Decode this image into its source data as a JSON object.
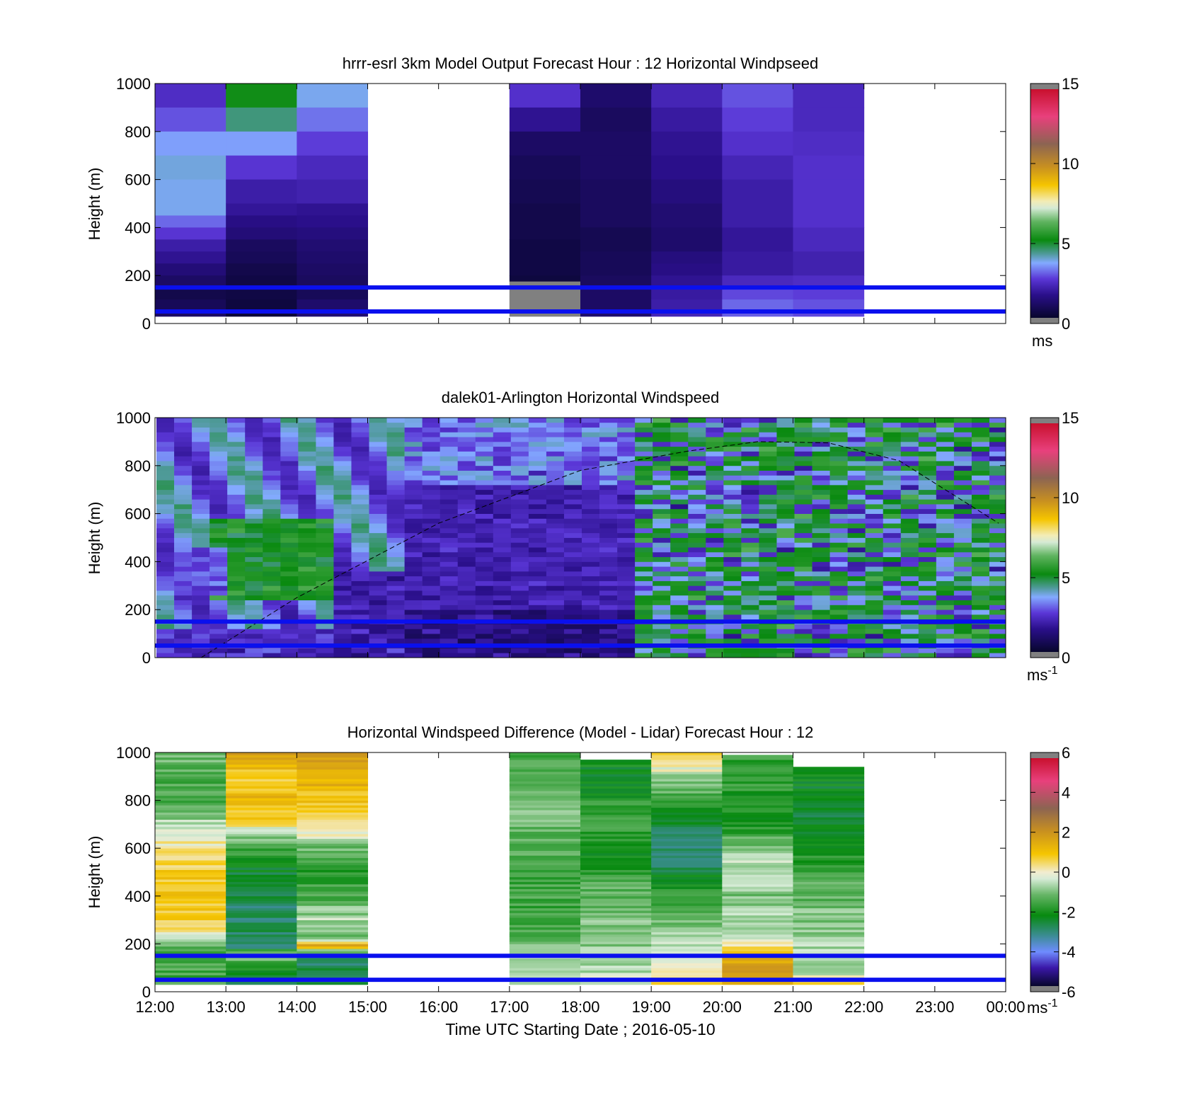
{
  "chart_data": [
    {
      "type": "heatmap",
      "title": "hrrr-esrl 3km Model Output   Forecast Hour : 12 Horizontal Windpseed",
      "ylabel": "Height (m)",
      "xlabel": "",
      "colorbar_label": "ms",
      "colorbar_label_exp": "",
      "colorbar_range": [
        0,
        15
      ],
      "colorbar_ticks": [
        "0",
        "5",
        "10",
        "15"
      ],
      "ylim": [
        0,
        1000
      ],
      "y_ticks": [
        "0",
        "200",
        "400",
        "600",
        "800",
        "1000"
      ],
      "x_ticks": [
        "12:00",
        "13:00",
        "14:00",
        "15:00",
        "16:00",
        "17:00",
        "18:00",
        "19:00",
        "20:00",
        "21:00",
        "22:00",
        "23:00",
        "00:00"
      ],
      "reference_lines_m": [
        50,
        150
      ],
      "columns": [
        {
          "hour": 0,
          "cells": [
            [
              900,
              1000,
              2.3
            ],
            [
              800,
              900,
              2.8
            ],
            [
              700,
              800,
              3.5
            ],
            [
              600,
              700,
              3.8
            ],
            [
              450,
              600,
              3.7
            ],
            [
              400,
              450,
              3.0
            ],
            [
              350,
              400,
              2.5
            ],
            [
              300,
              350,
              1.9
            ],
            [
              250,
              300,
              1.6
            ],
            [
              200,
              250,
              1.2
            ],
            [
              150,
              200,
              0.9
            ],
            [
              100,
              150,
              0.5
            ],
            [
              50,
              100,
              0.7
            ],
            [
              30,
              50,
              0.9
            ]
          ]
        },
        {
          "hour": 1,
          "cells": [
            [
              900,
              1000,
              5.2
            ],
            [
              800,
              900,
              4.4
            ],
            [
              700,
              800,
              3.5
            ],
            [
              600,
              700,
              2.5
            ],
            [
              500,
              600,
              1.9
            ],
            [
              450,
              500,
              1.7
            ],
            [
              400,
              450,
              1.4
            ],
            [
              350,
              400,
              1.2
            ],
            [
              300,
              350,
              0.8
            ],
            [
              250,
              300,
              0.7
            ],
            [
              200,
              250,
              0.5
            ],
            [
              150,
              200,
              0.4
            ],
            [
              100,
              150,
              0.4
            ],
            [
              50,
              100,
              0.3
            ],
            [
              30,
              50,
              0.2
            ]
          ]
        },
        {
          "hour": 2,
          "cells": [
            [
              900,
              1000,
              3.7
            ],
            [
              800,
              900,
              3.1
            ],
            [
              700,
              800,
              2.6
            ],
            [
              600,
              700,
              2.2
            ],
            [
              500,
              600,
              2.0
            ],
            [
              450,
              500,
              1.6
            ],
            [
              400,
              450,
              1.5
            ],
            [
              350,
              400,
              1.3
            ],
            [
              300,
              350,
              1.1
            ],
            [
              250,
              300,
              1.0
            ],
            [
              200,
              250,
              0.9
            ],
            [
              150,
              200,
              0.8
            ],
            [
              100,
              150,
              0.7
            ],
            [
              50,
              100,
              1.0
            ],
            [
              30,
              50,
              1.1
            ]
          ]
        },
        {
          "hour": 5,
          "cells": [
            [
              900,
              1000,
              2.4
            ],
            [
              800,
              900,
              1.6
            ],
            [
              700,
              800,
              0.9
            ],
            [
              600,
              700,
              0.7
            ],
            [
              500,
              600,
              0.6
            ],
            [
              350,
              500,
              0.5
            ],
            [
              200,
              350,
              0.4
            ],
            [
              175,
              200,
              0.3
            ],
            [
              150,
              175,
              -1
            ],
            [
              50,
              150,
              -1
            ],
            [
              30,
              50,
              -1
            ]
          ]
        },
        {
          "hour": 6,
          "cells": [
            [
              900,
              1000,
              1.0
            ],
            [
              800,
              900,
              0.8
            ],
            [
              700,
              800,
              0.9
            ],
            [
              600,
              700,
              0.9
            ],
            [
              500,
              600,
              0.8
            ],
            [
              400,
              500,
              0.8
            ],
            [
              300,
              400,
              0.6
            ],
            [
              200,
              300,
              0.7
            ],
            [
              150,
              200,
              0.8
            ],
            [
              50,
              150,
              0.9
            ],
            [
              30,
              50,
              1.0
            ]
          ]
        },
        {
          "hour": 7,
          "cells": [
            [
              900,
              1000,
              2.1
            ],
            [
              800,
              900,
              1.8
            ],
            [
              700,
              800,
              1.6
            ],
            [
              600,
              700,
              1.5
            ],
            [
              500,
              600,
              1.3
            ],
            [
              400,
              500,
              1.1
            ],
            [
              300,
              400,
              1.0
            ],
            [
              250,
              300,
              1.3
            ],
            [
              200,
              250,
              1.4
            ],
            [
              150,
              200,
              1.6
            ],
            [
              100,
              150,
              1.8
            ],
            [
              50,
              100,
              1.9
            ],
            [
              30,
              50,
              2.1
            ]
          ]
        },
        {
          "hour": 8,
          "cells": [
            [
              900,
              1000,
              2.8
            ],
            [
              800,
              900,
              2.6
            ],
            [
              700,
              800,
              2.4
            ],
            [
              600,
              700,
              2.1
            ],
            [
              400,
              600,
              1.9
            ],
            [
              300,
              400,
              1.7
            ],
            [
              200,
              300,
              1.8
            ],
            [
              150,
              200,
              2.2
            ],
            [
              100,
              150,
              2.7
            ],
            [
              50,
              100,
              3.0
            ],
            [
              30,
              50,
              2.9
            ]
          ]
        },
        {
          "hour": 9,
          "cells": [
            [
              900,
              1000,
              2.2
            ],
            [
              800,
              900,
              2.2
            ],
            [
              700,
              800,
              2.3
            ],
            [
              600,
              700,
              2.4
            ],
            [
              400,
              600,
              2.4
            ],
            [
              300,
              400,
              2.2
            ],
            [
              200,
              300,
              2.0
            ],
            [
              150,
              200,
              2.3
            ],
            [
              100,
              150,
              2.6
            ],
            [
              50,
              100,
              2.8
            ],
            [
              30,
              50,
              2.7
            ]
          ]
        }
      ]
    },
    {
      "type": "heatmap",
      "title": "dalek01-Arlington  Horizontal Windspeed",
      "ylabel": "Height (m)",
      "xlabel": "",
      "colorbar_label": "ms",
      "colorbar_label_exp": "-1",
      "colorbar_range": [
        0,
        15
      ],
      "colorbar_ticks": [
        "0",
        "5",
        "10",
        "15"
      ],
      "ylim": [
        0,
        1000
      ],
      "y_ticks": [
        "0",
        "200",
        "400",
        "600",
        "800",
        "1000"
      ],
      "x_ticks": [
        "12:00",
        "13:00",
        "14:00",
        "15:00",
        "16:00",
        "17:00",
        "18:00",
        "19:00",
        "20:00",
        "21:00",
        "22:00",
        "23:00",
        "00:00"
      ],
      "reference_lines_m": [
        50,
        150
      ],
      "time_step_hours": 0.25,
      "height_step_m": 20,
      "field": "dense lidar retrieval; slow jet regions near 14:30-16:30 UTC (1-2 m/s), faster mixed 3-6 m/s after 17:00 UTC",
      "boundary_layer_curve": {
        "x": [
          0.65,
          2,
          4,
          6,
          7.5,
          8.5,
          9.5,
          10.5,
          11.9
        ],
        "y": [
          0,
          250,
          560,
          780,
          860,
          900,
          895,
          820,
          560
        ]
      }
    },
    {
      "type": "heatmap",
      "title": "Horizontal Windspeed Difference (Model - Lidar) Forecast Hour : 12",
      "ylabel": "Height (m)",
      "xlabel": "Time UTC  Starting Date ; 2016-05-10",
      "colorbar_label": "ms",
      "colorbar_label_exp": "-1",
      "colorbar_range": [
        -6,
        6
      ],
      "colorbar_ticks": [
        "-6",
        "-4",
        "-2",
        "0",
        "2",
        "4",
        "6"
      ],
      "ylim": [
        0,
        1000
      ],
      "y_ticks": [
        "0",
        "200",
        "400",
        "600",
        "800",
        "1000"
      ],
      "x_ticks": [
        "12:00",
        "13:00",
        "14:00",
        "15:00",
        "16:00",
        "17:00",
        "18:00",
        "19:00",
        "20:00",
        "21:00",
        "22:00",
        "23:00",
        "00:00"
      ],
      "reference_lines_m": [
        50,
        150
      ],
      "columns": [
        {
          "hour": 0,
          "top": 1000,
          "profile": [
            [
              1000,
              -1.2
            ],
            [
              800,
              -1.6
            ],
            [
              700,
              -0.6
            ],
            [
              600,
              0.3
            ],
            [
              500,
              0.8
            ],
            [
              400,
              1.0
            ],
            [
              300,
              0.8
            ],
            [
              220,
              -0.3
            ],
            [
              170,
              -1.6
            ],
            [
              100,
              -1.6
            ],
            [
              30,
              -1.6
            ]
          ]
        },
        {
          "hour": 1,
          "top": 1000,
          "profile": [
            [
              1000,
              1.7
            ],
            [
              880,
              0.6
            ],
            [
              820,
              1.2
            ],
            [
              720,
              0.9
            ],
            [
              650,
              -0.8
            ],
            [
              560,
              -2.0
            ],
            [
              450,
              -2.8
            ],
            [
              300,
              -3.0
            ],
            [
              180,
              -2.9
            ],
            [
              150,
              -0.8
            ],
            [
              100,
              -2.2
            ],
            [
              30,
              -2.7
            ]
          ]
        },
        {
          "hour": 2,
          "top": 1000,
          "profile": [
            [
              1000,
              1.8
            ],
            [
              880,
              1.4
            ],
            [
              760,
              0.8
            ],
            [
              680,
              0.5
            ],
            [
              600,
              -1.2
            ],
            [
              500,
              -1.9
            ],
            [
              400,
              -1.6
            ],
            [
              300,
              -0.6
            ],
            [
              220,
              -1.2
            ],
            [
              190,
              1.8
            ],
            [
              150,
              -2.9
            ],
            [
              30,
              -2.8
            ]
          ]
        },
        {
          "hour": 5,
          "top": 1000,
          "profile": [
            [
              1000,
              -1.6
            ],
            [
              900,
              -1.5
            ],
            [
              800,
              -1.1
            ],
            [
              700,
              -1.2
            ],
            [
              600,
              -1.4
            ],
            [
              500,
              -1.7
            ],
            [
              400,
              -1.5
            ],
            [
              300,
              -1.8
            ],
            [
              200,
              -1.4
            ],
            [
              150,
              -0.6
            ],
            [
              100,
              -0.8
            ],
            [
              30,
              -0.4
            ]
          ]
        },
        {
          "hour": 6,
          "top": 970,
          "profile": [
            [
              970,
              -2.2
            ],
            [
              900,
              -2.4
            ],
            [
              800,
              -2.0
            ],
            [
              700,
              -1.6
            ],
            [
              600,
              -2.2
            ],
            [
              500,
              -1.8
            ],
            [
              400,
              -1.3
            ],
            [
              300,
              -1.1
            ],
            [
              200,
              -1.0
            ],
            [
              150,
              -0.5
            ],
            [
              100,
              -0.7
            ],
            [
              30,
              -0.3
            ]
          ]
        },
        {
          "hour": 7,
          "top": 1000,
          "profile": [
            [
              1000,
              1.2
            ],
            [
              960,
              0.5
            ],
            [
              880,
              -1.0
            ],
            [
              800,
              -1.6
            ],
            [
              700,
              -2.6
            ],
            [
              600,
              -3.0
            ],
            [
              500,
              -2.7
            ],
            [
              400,
              -1.6
            ],
            [
              300,
              -1.3
            ],
            [
              200,
              -0.6
            ],
            [
              150,
              -0.2
            ],
            [
              100,
              0.3
            ],
            [
              30,
              0.6
            ]
          ]
        },
        {
          "hour": 8,
          "top": 990,
          "profile": [
            [
              990,
              -1.8
            ],
            [
              900,
              -1.7
            ],
            [
              800,
              -2.0
            ],
            [
              700,
              -2.2
            ],
            [
              600,
              -0.9
            ],
            [
              500,
              -0.4
            ],
            [
              400,
              -1.0
            ],
            [
              300,
              -0.6
            ],
            [
              220,
              -0.4
            ],
            [
              150,
              1.4
            ],
            [
              100,
              1.7
            ],
            [
              30,
              1.6
            ]
          ]
        },
        {
          "hour": 9,
          "top": 940,
          "profile": [
            [
              940,
              -2.0
            ],
            [
              850,
              -2.4
            ],
            [
              750,
              -2.6
            ],
            [
              650,
              -2.2
            ],
            [
              550,
              -1.9
            ],
            [
              450,
              -1.5
            ],
            [
              350,
              -1.1
            ],
            [
              250,
              -0.8
            ],
            [
              150,
              -0.7
            ],
            [
              100,
              -0.9
            ],
            [
              30,
              0.4
            ]
          ]
        }
      ]
    }
  ]
}
